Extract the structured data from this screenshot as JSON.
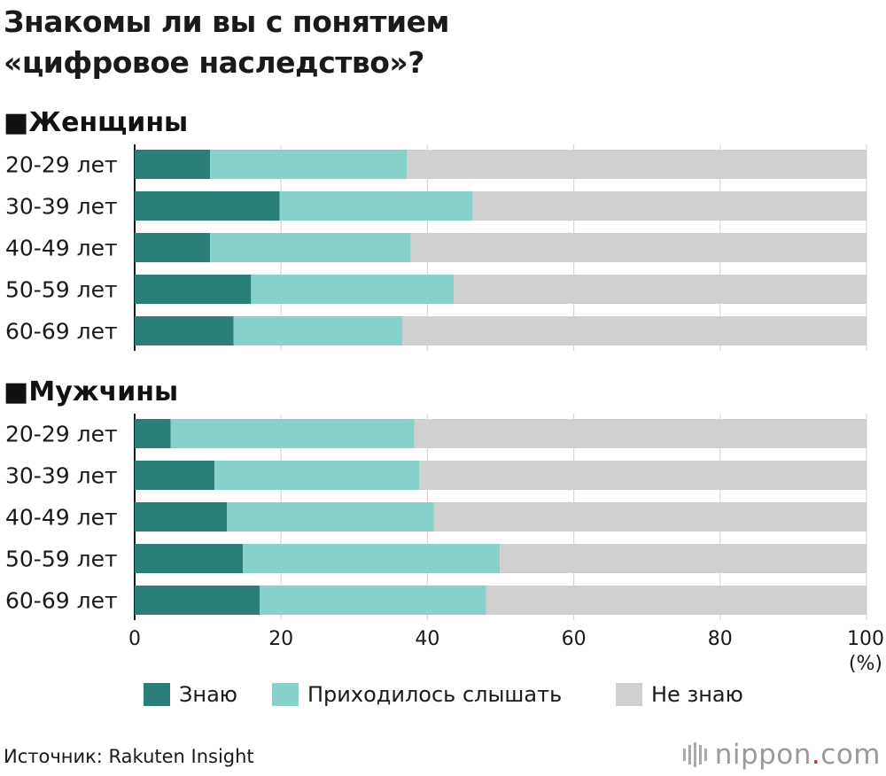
{
  "chart_data": {
    "type": "bar",
    "orientation": "horizontal",
    "stacked": true,
    "title": "Знакомы ли вы с понятием «цифровое наследство»?",
    "title_lines": [
      "Знакомы ли вы с понятием",
      "«цифровое наследство»?"
    ],
    "unit_label": "(%)",
    "xlim": [
      0,
      100
    ],
    "x_ticks": [
      0,
      20,
      40,
      60,
      80,
      100
    ],
    "grid": true,
    "legend_position": "bottom",
    "series": [
      {
        "name": "Знаю",
        "color": "#2a8078"
      },
      {
        "name": "Приходилось слышать",
        "color": "#88d1ca"
      },
      {
        "name": "Не знаю",
        "color": "#d0d0d0"
      }
    ],
    "groups": [
      {
        "name": "■Женщины",
        "categories": [
          "20-29 лет",
          "30-39 лет",
          "40-49 лет",
          "50-59 лет",
          "60-69 лет"
        ],
        "values": [
          [
            10.3,
            26.9,
            62.8
          ],
          [
            19.8,
            26.4,
            53.8
          ],
          [
            10.3,
            27.4,
            62.3
          ],
          [
            15.9,
            27.7,
            56.4
          ],
          [
            13.5,
            23.1,
            63.4
          ]
        ]
      },
      {
        "name": "■Мужчины",
        "categories": [
          "20-29 лет",
          "30-39 лет",
          "40-49 лет",
          "50-59 лет",
          "60-69 лет"
        ],
        "values": [
          [
            4.9,
            33.3,
            61.8
          ],
          [
            10.9,
            28.0,
            61.1
          ],
          [
            12.6,
            28.3,
            59.1
          ],
          [
            14.8,
            35.1,
            50.1
          ],
          [
            17.1,
            30.9,
            52.0
          ]
        ]
      }
    ]
  },
  "source": "Источник: Rakuten Insight",
  "logo": {
    "name": "nippon",
    "dot": ".",
    "suffix": "com"
  }
}
